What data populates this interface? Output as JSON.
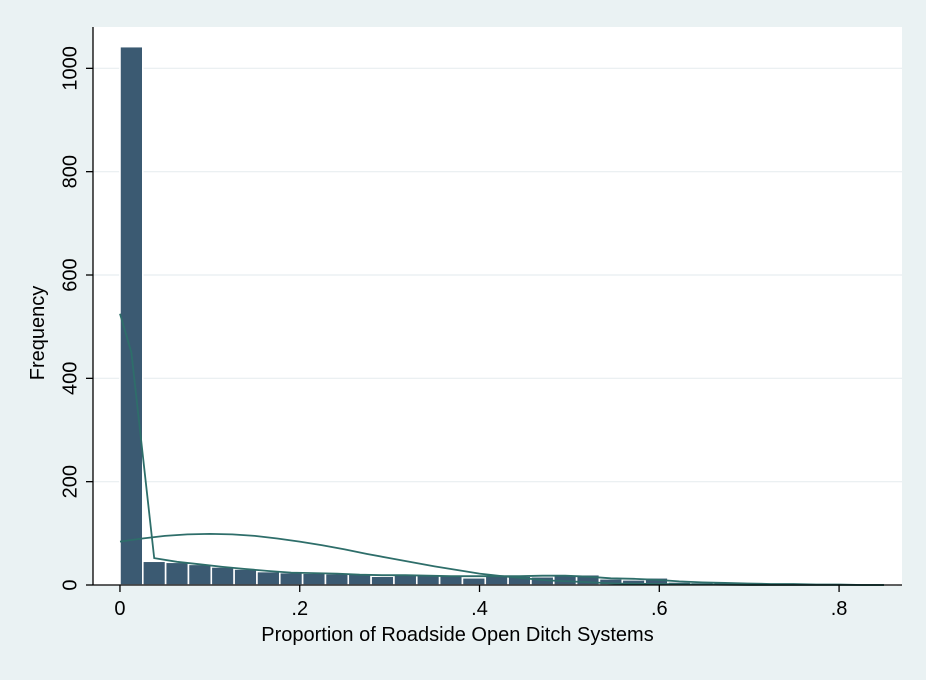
{
  "chart_data": {
    "type": "bar",
    "title": "",
    "xlabel": "Proportion of Roadside Open Ditch Systems",
    "ylabel": "Frequency",
    "xlim": [
      -0.03,
      0.87
    ],
    "ylim": [
      0,
      1080
    ],
    "xticks": [
      0,
      0.2,
      0.4,
      0.6,
      0.8
    ],
    "xtick_labels": [
      "0",
      ".2",
      ".4",
      ".6",
      ".8"
    ],
    "yticks": [
      0,
      200,
      400,
      600,
      800,
      1000
    ],
    "ytick_labels": [
      "0",
      "200",
      "400",
      "600",
      "800",
      "1000"
    ],
    "grid": true,
    "bin_width": 0.0254,
    "bins_left": [
      0,
      0.0254,
      0.0508,
      0.0762,
      0.1016,
      0.127,
      0.1524,
      0.1778,
      0.2032,
      0.2286,
      0.254,
      0.2794,
      0.3048,
      0.3302,
      0.3556,
      0.381,
      0.4064,
      0.4318,
      0.4572,
      0.4826,
      0.508,
      0.5334,
      0.5588,
      0.5842,
      0.6096,
      0.635,
      0.6604,
      0.6858,
      0.7112,
      0.7366,
      0.762,
      0.7874,
      0.8128,
      0.8382
    ],
    "values": [
      1042,
      46,
      44,
      40,
      35,
      31,
      26,
      24,
      23,
      22,
      21,
      17,
      20,
      19,
      18,
      14,
      18,
      17,
      16,
      18,
      20,
      12,
      10,
      14,
      6,
      5,
      5,
      4,
      3,
      2,
      2,
      1,
      1,
      1
    ],
    "bar_color": "#3b5a72",
    "bar_edge_color": "#ffffff",
    "series": [
      {
        "type": "line",
        "kind": "kernel density",
        "x": [
          0,
          0.0127,
          0.0381,
          0.0635,
          0.0889,
          0.1143,
          0.1397,
          0.1651,
          0.1905,
          0.2159,
          0.2413,
          0.2667,
          0.2921,
          0.3175,
          0.3429,
          0.3683,
          0.3937,
          0.4191,
          0.4445,
          0.4699,
          0.4953,
          0.5207,
          0.5461,
          0.5715,
          0.5969,
          0.6223,
          0.6477,
          0.6731,
          0.6985,
          0.7239,
          0.7493,
          0.7747,
          0.8001,
          0.8255,
          0.85
        ],
        "y": [
          525,
          450,
          52,
          45,
          40,
          35,
          31,
          27,
          24,
          23,
          22,
          20,
          19,
          19,
          18,
          17,
          17,
          17,
          17,
          18,
          18,
          16,
          13,
          12,
          10,
          7,
          5,
          4,
          3,
          2,
          2,
          1,
          1,
          0,
          0
        ],
        "color": "#2e6e6a"
      },
      {
        "type": "line",
        "kind": "normal density",
        "x": [
          0,
          0.025,
          0.05,
          0.075,
          0.1,
          0.125,
          0.15,
          0.175,
          0.2,
          0.225,
          0.25,
          0.275,
          0.3,
          0.325,
          0.35,
          0.375,
          0.4,
          0.425,
          0.45,
          0.475,
          0.5,
          0.525,
          0.55,
          0.6,
          0.65,
          0.7,
          0.75,
          0.8,
          0.85
        ],
        "y": [
          84,
          90,
          95,
          98,
          99,
          98,
          95,
          90,
          84,
          77,
          69,
          60,
          52,
          44,
          36,
          29,
          22,
          17,
          13,
          9,
          7,
          5,
          3,
          2,
          1,
          0,
          0,
          0,
          0
        ],
        "color": "#2e6e6a"
      }
    ]
  }
}
